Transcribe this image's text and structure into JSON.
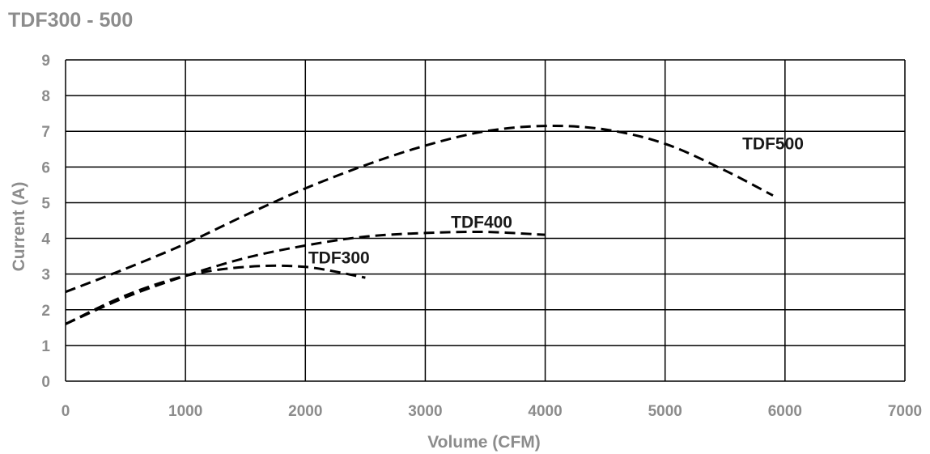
{
  "chart_data": {
    "type": "line",
    "title": "TDF300 - 500",
    "xlabel": "Volume (CFM)",
    "ylabel": "Current (A)",
    "xlim": [
      0,
      7000
    ],
    "ylim": [
      0,
      9
    ],
    "x_ticks": [
      "0",
      "1000",
      "2000",
      "3000",
      "4000",
      "5000",
      "6000",
      "7000"
    ],
    "y_ticks": [
      "0",
      "1",
      "2",
      "3",
      "4",
      "5",
      "6",
      "7",
      "8",
      "9"
    ],
    "grid": true,
    "legend": "none",
    "series": [
      {
        "name": "TDF300",
        "color": "#000000",
        "style": "dashed",
        "x": [
          0,
          500,
          1000,
          1500,
          2000,
          2500
        ],
        "y": [
          1.6,
          2.4,
          2.95,
          3.2,
          3.2,
          2.9
        ]
      },
      {
        "name": "TDF400",
        "color": "#000000",
        "style": "dashed",
        "x": [
          0,
          500,
          1000,
          1500,
          2000,
          2500,
          3000,
          3500,
          4000
        ],
        "y": [
          1.6,
          2.35,
          2.95,
          3.45,
          3.8,
          4.05,
          4.15,
          4.18,
          4.1
        ]
      },
      {
        "name": "TDF500",
        "color": "#000000",
        "style": "dashed",
        "x": [
          0,
          500,
          1000,
          1500,
          2000,
          2500,
          3000,
          3500,
          4000,
          4500,
          5000,
          5500,
          5900
        ],
        "y": [
          2.5,
          3.15,
          3.85,
          4.65,
          5.4,
          6.05,
          6.6,
          7.0,
          7.15,
          7.05,
          6.65,
          5.9,
          5.2
        ]
      }
    ]
  }
}
